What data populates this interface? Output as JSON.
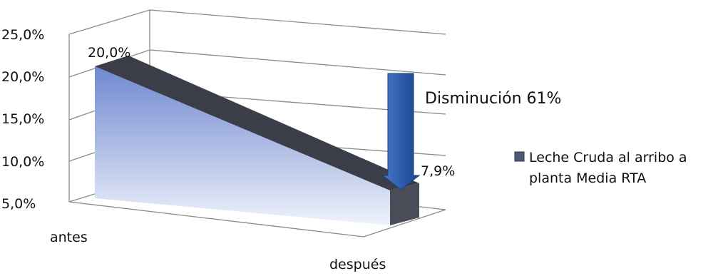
{
  "chart_data": {
    "type": "area",
    "categories": [
      "antes",
      "después"
    ],
    "series": [
      {
        "name": "Leche Cruda  al arribo a planta  Media RTA",
        "values": [
          20.0,
          7.9
        ],
        "data_labels": [
          "20,0%",
          "7,9%"
        ]
      }
    ],
    "y_ticks": [
      "5,0%",
      "10,0%",
      "15,0%",
      "20,0%",
      "25,0%"
    ],
    "ylim": [
      5,
      25
    ],
    "grid": true,
    "legend_position": "right",
    "annotation": "Disminución  61%",
    "colors": {
      "area_top": "#6f88d0",
      "area_bottom": "#e9eef9",
      "ribbon": "#3b3e48",
      "arrow": "#2f5fb1",
      "gridline": "#8a8a8a"
    }
  },
  "legend": {
    "line1": "Leche Cruda  al arribo a",
    "line2": "planta  Media RTA"
  }
}
